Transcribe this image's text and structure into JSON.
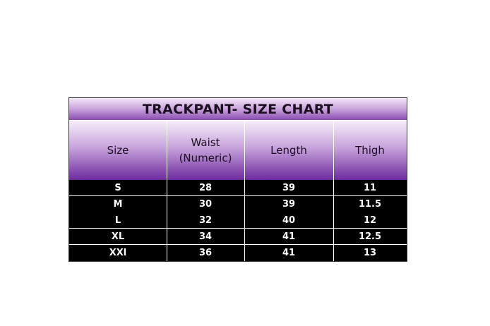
{
  "title": "TRACKPANT- SIZE CHART",
  "headers": [
    "Size",
    "Waist\n(Numeric)",
    "Length",
    "Thigh"
  ],
  "header_lines": [
    [
      "Size"
    ],
    [
      "Waist",
      "(Numeric)"
    ],
    [
      "Length"
    ],
    [
      "Thigh"
    ]
  ],
  "rows": [
    [
      "S",
      "28",
      "39",
      "11"
    ],
    [
      "M",
      "30",
      "39",
      "11.5"
    ],
    [
      "L",
      "32",
      "40",
      "12"
    ],
    [
      "XL",
      "34",
      "41",
      "12.5"
    ],
    [
      "XXl",
      "36",
      "41",
      "13"
    ]
  ],
  "colors": {
    "header_purple": "#7b3aa8",
    "body_bg": "#000000",
    "text_light": "#ffffff"
  }
}
